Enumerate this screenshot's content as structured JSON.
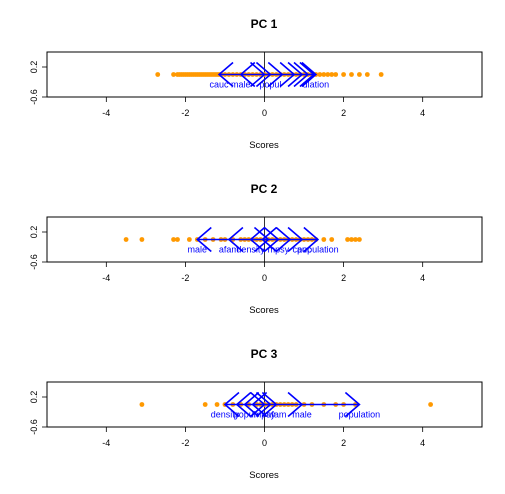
{
  "chart_data": [
    {
      "type": "scatter",
      "title": "PC 1",
      "xlabel": "Scores",
      "ylabel": "",
      "xlim": [
        -5.5,
        5.5
      ],
      "ylim": [
        -0.6,
        0.6
      ],
      "xticks": [
        "-4",
        "-2",
        "0",
        "2",
        "4"
      ],
      "yticks": [
        "-0.6",
        "0.2"
      ],
      "point_color": "#ff9900",
      "points": [
        -2.7,
        -2.3,
        -2.2,
        -2.15,
        -2.1,
        -2.05,
        -2.0,
        -1.95,
        -1.9,
        -1.85,
        -1.8,
        -1.75,
        -1.7,
        -1.65,
        -1.6,
        -1.55,
        -1.5,
        -1.45,
        -1.4,
        -1.35,
        -1.3,
        -1.25,
        -1.2,
        -1.15,
        -1.1,
        -1.0,
        -0.9,
        -0.8,
        -0.7,
        -0.6,
        -0.5,
        -0.4,
        -0.3,
        -0.2,
        -0.1,
        0.0,
        0.1,
        0.2,
        0.3,
        0.4,
        0.5,
        0.6,
        0.7,
        0.8,
        0.9,
        1.0,
        1.1,
        1.2,
        1.3,
        1.4,
        1.5,
        1.6,
        1.7,
        1.8,
        2.0,
        2.2,
        2.4,
        2.6,
        2.95
      ],
      "arrow_color": "#0000ff",
      "arrows": [
        {
          "label": "cauc",
          "value": -1.15
        },
        {
          "label": "male",
          "value": -0.6
        },
        {
          "label": "",
          "value": 0.0
        },
        {
          "label": "popul",
          "value": 0.15
        },
        {
          "label": "",
          "value": 0.45
        },
        {
          "label": "",
          "value": 0.75
        },
        {
          "label": "",
          "value": 0.95
        },
        {
          "label": "",
          "value": 1.1
        },
        {
          "label": "",
          "value": 1.25
        },
        {
          "label": "ulation",
          "value": 1.3
        }
      ]
    },
    {
      "type": "scatter",
      "title": "PC 2",
      "xlabel": "Scores",
      "ylabel": "",
      "xlim": [
        -5.5,
        5.5
      ],
      "ylim": [
        -0.6,
        0.6
      ],
      "xticks": [
        "-4",
        "-2",
        "0",
        "2",
        "4"
      ],
      "yticks": [
        "-0.6",
        "0.2"
      ],
      "point_color": "#ff9900",
      "points": [
        -3.5,
        -3.1,
        -2.3,
        -2.2,
        -1.9,
        -1.7,
        -1.5,
        -1.3,
        -1.1,
        -1.0,
        -0.8,
        -0.6,
        -0.5,
        -0.4,
        -0.3,
        -0.2,
        -0.1,
        0.0,
        0.1,
        0.2,
        0.3,
        0.4,
        0.5,
        0.6,
        0.7,
        0.8,
        0.9,
        1.0,
        1.1,
        1.2,
        1.3,
        1.5,
        1.7,
        2.1,
        2.2,
        2.3,
        2.4
      ],
      "arrow_color": "#0000ff",
      "arrows": [
        {
          "label": "male",
          "value": -1.7
        },
        {
          "label": "afam",
          "value": -0.9
        },
        {
          "label": "density",
          "value": -0.35
        },
        {
          "label": "",
          "value": -0.05
        },
        {
          "label": "",
          "value": 0.1
        },
        {
          "label": "mpsy",
          "value": 0.35
        },
        {
          "label": "",
          "value": 0.65
        },
        {
          "label": "cauc",
          "value": 0.95
        },
        {
          "label": "population",
          "value": 1.35
        }
      ]
    },
    {
      "type": "scatter",
      "title": "PC 3",
      "xlabel": "Scores",
      "ylabel": "",
      "xlim": [
        -5.5,
        5.5
      ],
      "ylim": [
        -0.6,
        0.6
      ],
      "xticks": [
        "-4",
        "-2",
        "0",
        "2",
        "4"
      ],
      "yticks": [
        "-0.6",
        "0.2"
      ],
      "point_color": "#ff9900",
      "points": [
        -3.1,
        -1.5,
        -1.2,
        -1.0,
        -0.8,
        -0.6,
        -0.4,
        -0.2,
        -0.1,
        0.0,
        0.1,
        0.2,
        0.3,
        0.4,
        0.5,
        0.6,
        0.7,
        0.8,
        1.0,
        1.2,
        1.5,
        1.8,
        2.0,
        2.3,
        4.2
      ],
      "arrow_color": "#0000ff",
      "arrows": [
        {
          "label": "density",
          "value": -1.0
        },
        {
          "label": "",
          "value": -0.7
        },
        {
          "label": "popul",
          "value": -0.5
        },
        {
          "label": "",
          "value": -0.3
        },
        {
          "label": "mpsy",
          "value": 0.0
        },
        {
          "label": "",
          "value": 0.15
        },
        {
          "label": "afam",
          "value": 0.3
        },
        {
          "label": "male",
          "value": 0.95
        },
        {
          "label": "population",
          "value": 2.4
        }
      ]
    }
  ]
}
